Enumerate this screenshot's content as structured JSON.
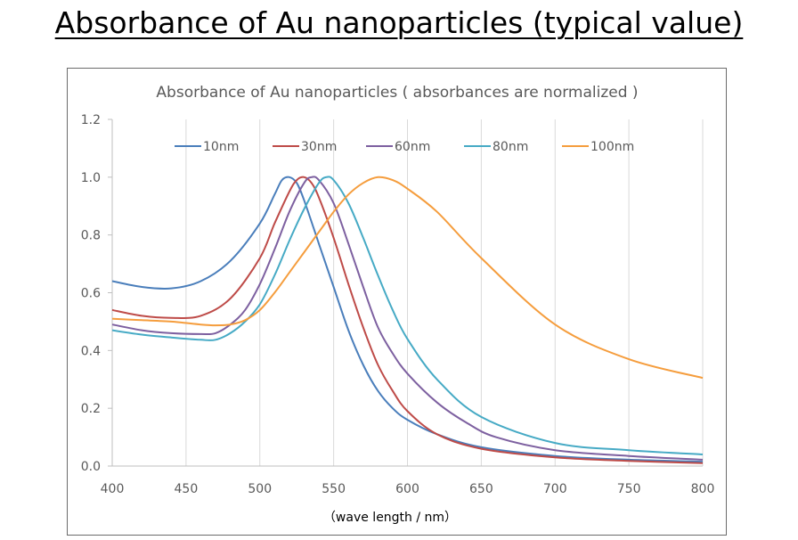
{
  "page_title": "Absorbance of Au nanoparticles (typical value)",
  "chart_data": {
    "type": "line",
    "title": "Absorbance of Au nanoparticles ( absorbances are normalized )",
    "xlabel": "（wave length / nm）",
    "ylabel": "",
    "xlim": [
      400,
      800
    ],
    "ylim": [
      0,
      1.2
    ],
    "x_ticks": [
      "400",
      "450",
      "500",
      "550",
      "600",
      "650",
      "700",
      "750",
      "800"
    ],
    "y_ticks": [
      "0.0",
      "0.2",
      "0.4",
      "0.6",
      "0.8",
      "1.0",
      "1.2"
    ],
    "grid": "vertical",
    "legend_position": "top",
    "series": [
      {
        "name": "10nm",
        "color": "#4a7ebb",
        "points": [
          [
            400,
            0.64
          ],
          [
            420,
            0.62
          ],
          [
            440,
            0.615
          ],
          [
            460,
            0.64
          ],
          [
            480,
            0.71
          ],
          [
            500,
            0.84
          ],
          [
            510,
            0.94
          ],
          [
            515,
            0.99
          ],
          [
            520,
            1.0
          ],
          [
            525,
            0.98
          ],
          [
            530,
            0.92
          ],
          [
            540,
            0.77
          ],
          [
            550,
            0.62
          ],
          [
            560,
            0.47
          ],
          [
            570,
            0.35
          ],
          [
            580,
            0.26
          ],
          [
            590,
            0.2
          ],
          [
            600,
            0.16
          ],
          [
            620,
            0.11
          ],
          [
            650,
            0.065
          ],
          [
            700,
            0.035
          ],
          [
            750,
            0.022
          ],
          [
            800,
            0.015
          ]
        ]
      },
      {
        "name": "30nm",
        "color": "#be4b48",
        "points": [
          [
            400,
            0.54
          ],
          [
            420,
            0.52
          ],
          [
            440,
            0.513
          ],
          [
            460,
            0.52
          ],
          [
            480,
            0.58
          ],
          [
            500,
            0.72
          ],
          [
            510,
            0.84
          ],
          [
            520,
            0.95
          ],
          [
            525,
            0.99
          ],
          [
            530,
            1.0
          ],
          [
            535,
            0.98
          ],
          [
            540,
            0.93
          ],
          [
            550,
            0.79
          ],
          [
            560,
            0.63
          ],
          [
            570,
            0.48
          ],
          [
            580,
            0.35
          ],
          [
            590,
            0.26
          ],
          [
            600,
            0.19
          ],
          [
            620,
            0.11
          ],
          [
            650,
            0.06
          ],
          [
            700,
            0.03
          ],
          [
            750,
            0.018
          ],
          [
            800,
            0.01
          ]
        ]
      },
      {
        "name": "60nm",
        "color": "#7d60a0",
        "points": [
          [
            400,
            0.49
          ],
          [
            420,
            0.47
          ],
          [
            440,
            0.46
          ],
          [
            460,
            0.457
          ],
          [
            470,
            0.46
          ],
          [
            480,
            0.49
          ],
          [
            490,
            0.54
          ],
          [
            500,
            0.63
          ],
          [
            510,
            0.75
          ],
          [
            520,
            0.88
          ],
          [
            530,
            0.98
          ],
          [
            535,
            1.0
          ],
          [
            540,
            0.99
          ],
          [
            550,
            0.91
          ],
          [
            560,
            0.77
          ],
          [
            570,
            0.62
          ],
          [
            580,
            0.48
          ],
          [
            590,
            0.39
          ],
          [
            600,
            0.32
          ],
          [
            620,
            0.22
          ],
          [
            640,
            0.15
          ],
          [
            660,
            0.1
          ],
          [
            700,
            0.055
          ],
          [
            750,
            0.035
          ],
          [
            800,
            0.022
          ]
        ]
      },
      {
        "name": "80nm",
        "color": "#46aac5",
        "points": [
          [
            400,
            0.47
          ],
          [
            420,
            0.455
          ],
          [
            440,
            0.445
          ],
          [
            460,
            0.437
          ],
          [
            470,
            0.437
          ],
          [
            480,
            0.46
          ],
          [
            490,
            0.5
          ],
          [
            500,
            0.56
          ],
          [
            510,
            0.66
          ],
          [
            520,
            0.78
          ],
          [
            530,
            0.89
          ],
          [
            540,
            0.98
          ],
          [
            545,
            1.0
          ],
          [
            550,
            0.99
          ],
          [
            560,
            0.91
          ],
          [
            570,
            0.79
          ],
          [
            580,
            0.66
          ],
          [
            590,
            0.54
          ],
          [
            600,
            0.44
          ],
          [
            620,
            0.3
          ],
          [
            650,
            0.17
          ],
          [
            700,
            0.08
          ],
          [
            750,
            0.055
          ],
          [
            800,
            0.04
          ]
        ]
      },
      {
        "name": "100nm",
        "color": "#f59d3d",
        "points": [
          [
            400,
            0.51
          ],
          [
            420,
            0.505
          ],
          [
            440,
            0.5
          ],
          [
            460,
            0.49
          ],
          [
            470,
            0.487
          ],
          [
            480,
            0.49
          ],
          [
            490,
            0.505
          ],
          [
            500,
            0.54
          ],
          [
            510,
            0.6
          ],
          [
            520,
            0.67
          ],
          [
            530,
            0.74
          ],
          [
            540,
            0.81
          ],
          [
            550,
            0.88
          ],
          [
            560,
            0.94
          ],
          [
            570,
            0.98
          ],
          [
            580,
            1.0
          ],
          [
            590,
            0.99
          ],
          [
            600,
            0.96
          ],
          [
            620,
            0.88
          ],
          [
            650,
            0.72
          ],
          [
            700,
            0.49
          ],
          [
            750,
            0.37
          ],
          [
            800,
            0.305
          ]
        ]
      }
    ]
  }
}
